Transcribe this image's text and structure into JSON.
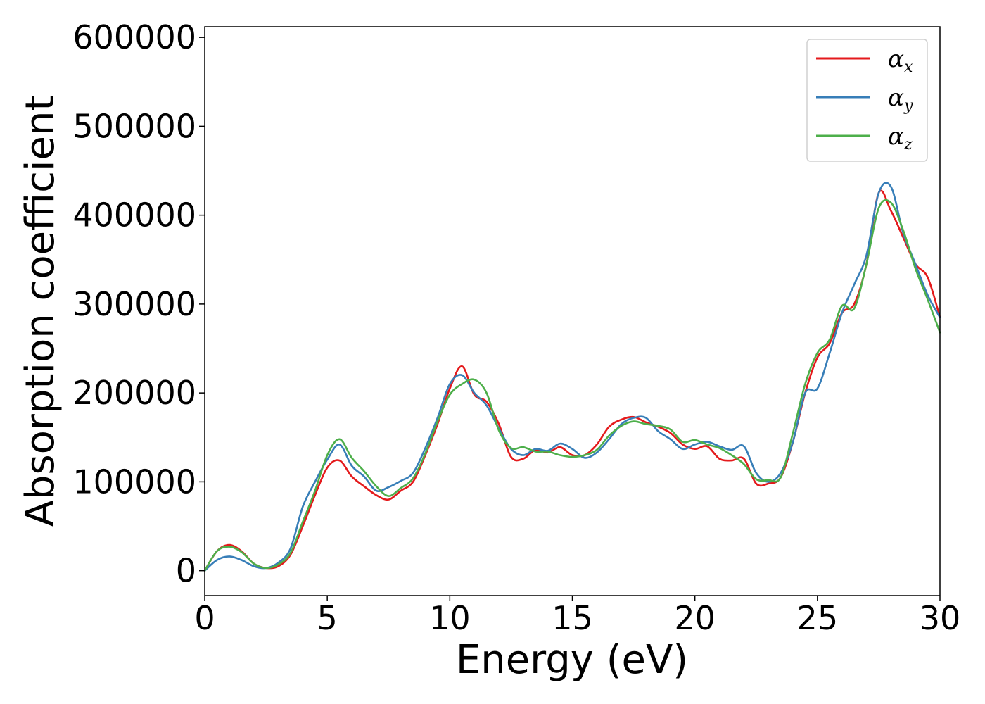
{
  "chart_data": {
    "type": "line",
    "xlabel": "Energy (eV)",
    "ylabel": "Absorption coefficient",
    "xlim": [
      0,
      30
    ],
    "ylim": [
      -28000,
      612000
    ],
    "xticks": [
      0,
      5,
      10,
      15,
      20,
      25,
      30
    ],
    "xtick_labels": [
      "0",
      "5",
      "10",
      "15",
      "20",
      "25",
      "30"
    ],
    "yticks": [
      0,
      100000,
      200000,
      300000,
      400000,
      500000,
      600000
    ],
    "ytick_labels": [
      "0",
      "100000",
      "200000",
      "300000",
      "400000",
      "500000",
      "600000"
    ],
    "grid": false,
    "legend": "top-right",
    "x": [
      0,
      0.5,
      1,
      1.5,
      2,
      2.5,
      3,
      3.5,
      4,
      4.5,
      5,
      5.5,
      6,
      6.5,
      7,
      7.5,
      8,
      8.5,
      9,
      9.5,
      10,
      10.5,
      11,
      11.5,
      12,
      12.5,
      13,
      13.5,
      14,
      14.5,
      15,
      15.5,
      16,
      16.5,
      17,
      17.5,
      18,
      18.5,
      19,
      19.5,
      20,
      20.5,
      21,
      21.5,
      22,
      22.5,
      23,
      23.5,
      24,
      24.5,
      25,
      25.5,
      26,
      26.5,
      27,
      27.5,
      28,
      28.5,
      29,
      29.5,
      30
    ],
    "series": [
      {
        "name": "α",
        "subscript": "x",
        "color": "#e41a1c",
        "values": [
          0,
          22000,
          29000,
          22000,
          8000,
          3000,
          5000,
          18000,
          50000,
          85000,
          116000,
          124000,
          106000,
          95000,
          85000,
          80000,
          90000,
          100000,
          130000,
          165000,
          205000,
          230000,
          198000,
          190000,
          165000,
          128000,
          126000,
          136000,
          133000,
          139000,
          130000,
          130000,
          142000,
          162000,
          170000,
          173000,
          167000,
          162000,
          155000,
          142000,
          137000,
          140000,
          126000,
          124000,
          126000,
          98000,
          98000,
          105000,
          145000,
          200000,
          240000,
          256000,
          290000,
          300000,
          345000,
          425000,
          405000,
          375000,
          345000,
          330000,
          285000
        ]
      },
      {
        "name": "α",
        "subscript": "y",
        "color": "#377eb8",
        "values": [
          0,
          12000,
          16000,
          12000,
          5000,
          3000,
          9000,
          25000,
          72000,
          100000,
          125000,
          142000,
          118000,
          106000,
          90000,
          94000,
          101000,
          110000,
          138000,
          172000,
          210000,
          220000,
          200000,
          186000,
          160000,
          137000,
          130000,
          137000,
          135000,
          143000,
          137000,
          127000,
          133000,
          148000,
          165000,
          172000,
          172000,
          157000,
          148000,
          137000,
          142000,
          145000,
          140000,
          136000,
          140000,
          110000,
          100000,
          110000,
          145000,
          200000,
          205000,
          245000,
          290000,
          322000,
          355000,
          425000,
          432000,
          380000,
          345000,
          310000,
          285000
        ]
      },
      {
        "name": "α",
        "subscript": "z",
        "color": "#4daf4a",
        "values": [
          0,
          22000,
          27000,
          21000,
          8000,
          3000,
          7000,
          20000,
          55000,
          90000,
          130000,
          148000,
          127000,
          112000,
          95000,
          84000,
          93000,
          104000,
          132000,
          168000,
          198000,
          210000,
          215000,
          200000,
          158000,
          138000,
          139000,
          134000,
          134000,
          130000,
          128000,
          130000,
          136000,
          152000,
          163000,
          168000,
          165000,
          163000,
          159000,
          145000,
          147000,
          142000,
          138000,
          130000,
          120000,
          103000,
          102000,
          105000,
          155000,
          210000,
          245000,
          260000,
          298000,
          295000,
          345000,
          408000,
          414000,
          383000,
          340000,
          305000,
          268000
        ]
      }
    ]
  }
}
